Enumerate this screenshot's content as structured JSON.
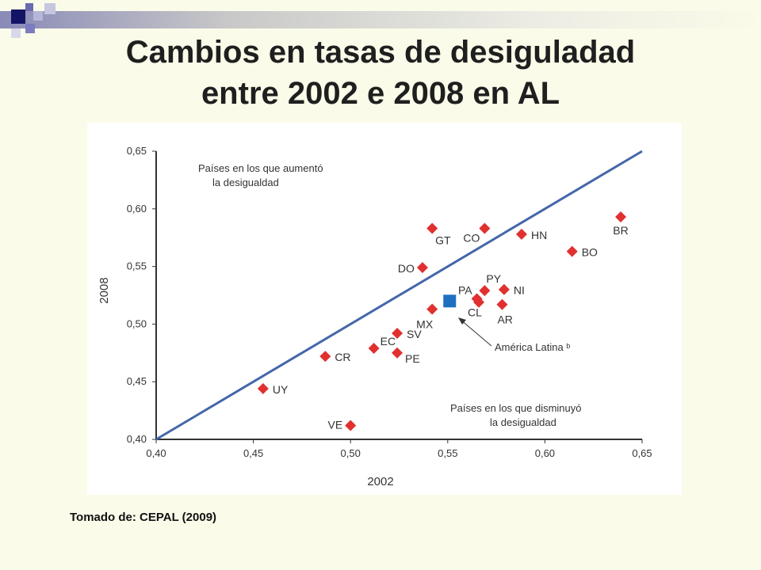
{
  "slide": {
    "title_line1": "Cambios en tasas de desiguladad",
    "title_line2": "entre 2002  e 2008 en AL",
    "source": "Tomado de: CEPAL (2009)"
  },
  "colors": {
    "diagonal": "#4466aa",
    "country_marker": "#e03030",
    "region_marker": "#1f6fc0",
    "axis": "#333333"
  },
  "chart_data": {
    "type": "scatter",
    "xlabel": "2002",
    "ylabel": "2008",
    "xlim": [
      0.4,
      0.65
    ],
    "ylim": [
      0.4,
      0.65
    ],
    "xticks": [
      "0,40",
      "0,45",
      "0,50",
      "0,55",
      "0,60",
      "0,65"
    ],
    "yticks": [
      "0,40",
      "0,45",
      "0,50",
      "0,55",
      "0,60",
      "0,65"
    ],
    "diagonal_line": {
      "from": [
        0.4,
        0.4
      ],
      "to": [
        0.65,
        0.65
      ]
    },
    "annotations": {
      "above_line": [
        "Países en los que aumentó",
        "la desigualdad"
      ],
      "below_line": [
        "Países en los que disminuyó",
        "la desigualdad"
      ],
      "region_label": "América Latina ᵇ"
    },
    "series": [
      {
        "points": [
          {
            "label": "GT",
            "x": 0.542,
            "y": 0.583
          },
          {
            "label": "CO",
            "x": 0.569,
            "y": 0.583
          },
          {
            "label": "HN",
            "x": 0.588,
            "y": 0.578
          },
          {
            "label": "BR",
            "x": 0.639,
            "y": 0.593
          },
          {
            "label": "BO",
            "x": 0.614,
            "y": 0.563
          },
          {
            "label": "DO",
            "x": 0.537,
            "y": 0.549
          },
          {
            "label": "PY",
            "x": 0.569,
            "y": 0.529
          },
          {
            "label": "PA",
            "x": 0.565,
            "y": 0.522
          },
          {
            "label": "NI",
            "x": 0.579,
            "y": 0.53
          },
          {
            "label": "CL",
            "x": 0.566,
            "y": 0.519
          },
          {
            "label": "AR",
            "x": 0.578,
            "y": 0.517
          },
          {
            "label": "MX",
            "x": 0.542,
            "y": 0.513
          },
          {
            "label": "SV",
            "x": 0.524,
            "y": 0.492
          },
          {
            "label": "EC",
            "x": 0.512,
            "y": 0.479
          },
          {
            "label": "PE",
            "x": 0.524,
            "y": 0.475
          },
          {
            "label": "CR",
            "x": 0.487,
            "y": 0.472
          },
          {
            "label": "UY",
            "x": 0.455,
            "y": 0.444
          },
          {
            "label": "VE",
            "x": 0.5,
            "y": 0.412
          }
        ]
      },
      {
        "points": [
          {
            "label": "América Latina",
            "x": 0.551,
            "y": 0.52
          }
        ]
      }
    ]
  }
}
